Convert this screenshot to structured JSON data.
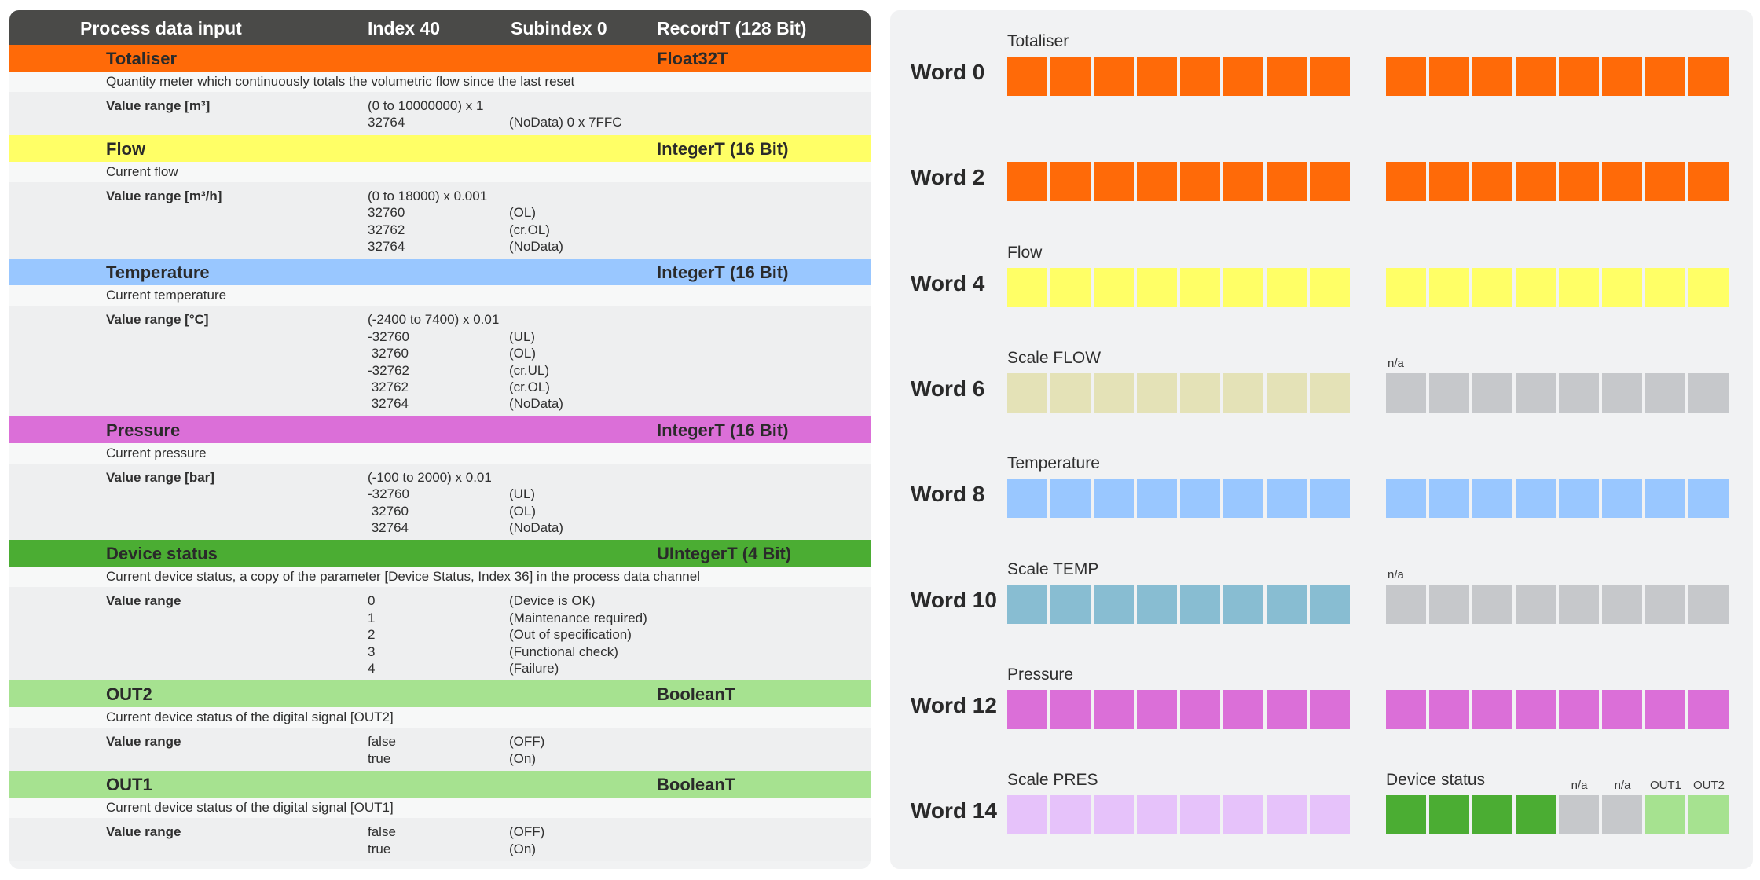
{
  "colors": {
    "orange": "#ff6a08",
    "yellow": "#ffff66",
    "scale_flow": "#e4e2b7",
    "grey": "#c6c8cb",
    "blue": "#99c7ff",
    "scale_temp": "#88bdd2",
    "pink": "#db6fd8",
    "scale_pres": "#e6c2fa",
    "green_dark": "#4bad33",
    "green_light": "#a6e290",
    "header_bg": "#4a4a48"
  },
  "table": {
    "header": {
      "title": "Process data input",
      "index": "Index 40",
      "subindex": "Subindex 0",
      "record": "RecordT (128 Bit)"
    },
    "sections": [
      {
        "name": "Totaliser",
        "type": "Float32T",
        "color": "#ff6a08",
        "description": "Quantity meter which continuously totals the volumetric flow since the last reset",
        "value_label": "Value range [m³]",
        "values": [
          [
            "(0 to 10000000) x 1",
            ""
          ],
          [
            "32764",
            "(NoData) 0 x 7FFC"
          ]
        ]
      },
      {
        "name": "Flow",
        "type": "IntegerT (16 Bit)",
        "color": "#ffff66",
        "description": "Current flow",
        "value_label": "Value range [m³/h]",
        "values": [
          [
            "(0 to 18000) x 0.001",
            ""
          ],
          [
            "32760",
            "(OL)"
          ],
          [
            "32762",
            "(cr.OL)"
          ],
          [
            "32764",
            "(NoData)"
          ]
        ]
      },
      {
        "name": "Temperature",
        "type": "IntegerT (16 Bit)",
        "color": "#99c7ff",
        "description": "Current temperature",
        "value_label": "Value range [°C]",
        "values": [
          [
            "(-2400 to 7400) x 0.01",
            ""
          ],
          [
            "-32760",
            "(UL)"
          ],
          [
            " 32760",
            "(OL)"
          ],
          [
            "-32762",
            "(cr.UL)"
          ],
          [
            " 32762",
            "(cr.OL)"
          ],
          [
            " 32764",
            "(NoData)"
          ]
        ]
      },
      {
        "name": "Pressure",
        "type": "IntegerT (16 Bit)",
        "color": "#db6fd8",
        "description": "Current pressure",
        "value_label": "Value range [bar]",
        "values": [
          [
            "(-100 to 2000) x 0.01",
            ""
          ],
          [
            "-32760",
            "(UL)"
          ],
          [
            " 32760",
            "(OL)"
          ],
          [
            " 32764",
            "(NoData)"
          ]
        ]
      },
      {
        "name": "Device status",
        "type": "UIntegerT (4 Bit)",
        "color": "#4bad33",
        "description": "Current device status, a copy of the parameter [Device Status, Index 36] in the process data channel",
        "value_label": "Value range",
        "values": [
          [
            "0",
            "(Device is OK)"
          ],
          [
            "1",
            "(Maintenance required)"
          ],
          [
            "2",
            "(Out of specification)"
          ],
          [
            "3",
            "(Functional check)"
          ],
          [
            "4",
            "(Failure)"
          ]
        ]
      },
      {
        "name": "OUT2",
        "type": "BooleanT",
        "color": "#a6e290",
        "description": "Current device status of the digital signal [OUT2]",
        "value_label": "Value range",
        "values": [
          [
            "false",
            "(OFF)"
          ],
          [
            "true",
            "(On)"
          ]
        ]
      },
      {
        "name": "OUT1",
        "type": "BooleanT",
        "color": "#a6e290",
        "description": "Current device status of the digital signal [OUT1]",
        "value_label": "Value range",
        "values": [
          [
            "false",
            "(OFF)"
          ],
          [
            "true",
            "(On)"
          ]
        ]
      }
    ]
  },
  "words": [
    {
      "label": "Word 0",
      "left_label": "Totaliser",
      "right_label": "",
      "left": {
        "count": 8,
        "color": "#ff6a08"
      },
      "right": [
        {
          "count": 8,
          "color": "#ff6a08"
        }
      ],
      "small_labels": []
    },
    {
      "label": "Word 2",
      "left_label": "",
      "right_label": "",
      "left": {
        "count": 8,
        "color": "#ff6a08"
      },
      "right": [
        {
          "count": 8,
          "color": "#ff6a08"
        }
      ],
      "small_labels": []
    },
    {
      "label": "Word 4",
      "left_label": "Flow",
      "right_label": "",
      "left": {
        "count": 8,
        "color": "#ffff66"
      },
      "right": [
        {
          "count": 8,
          "color": "#ffff66"
        }
      ],
      "small_labels": []
    },
    {
      "label": "Word 6",
      "left_label": "Scale FLOW",
      "right_label": "",
      "left": {
        "count": 8,
        "color": "#e4e2b7"
      },
      "right": [
        {
          "count": 8,
          "color": "#c6c8cb"
        }
      ],
      "small_labels": [
        {
          "text": "n/a",
          "cell": 0
        }
      ]
    },
    {
      "label": "Word 8",
      "left_label": "Temperature",
      "right_label": "",
      "left": {
        "count": 8,
        "color": "#99c7ff"
      },
      "right": [
        {
          "count": 8,
          "color": "#99c7ff"
        }
      ],
      "small_labels": []
    },
    {
      "label": "Word 10",
      "left_label": "Scale TEMP",
      "right_label": "",
      "left": {
        "count": 8,
        "color": "#88bdd2"
      },
      "right": [
        {
          "count": 8,
          "color": "#c6c8cb"
        }
      ],
      "small_labels": [
        {
          "text": "n/a",
          "cell": 0
        }
      ]
    },
    {
      "label": "Word 12",
      "left_label": "Pressure",
      "right_label": "",
      "left": {
        "count": 8,
        "color": "#db6fd8"
      },
      "right": [
        {
          "count": 8,
          "color": "#db6fd8"
        }
      ],
      "small_labels": []
    },
    {
      "label": "Word 14",
      "left_label": "Scale PRES",
      "right_label": "Device status",
      "left": {
        "count": 8,
        "color": "#e6c2fa"
      },
      "right": [
        {
          "count": 4,
          "color": "#4bad33"
        },
        {
          "count": 2,
          "color": "#c6c8cb"
        },
        {
          "count": 2,
          "color": "#a6e290"
        }
      ],
      "small_labels": [
        {
          "text": "n/a",
          "cell": 4
        },
        {
          "text": "n/a",
          "cell": 5
        },
        {
          "text": "OUT1",
          "cell": 6
        },
        {
          "text": "OUT2",
          "cell": 7
        }
      ]
    }
  ]
}
